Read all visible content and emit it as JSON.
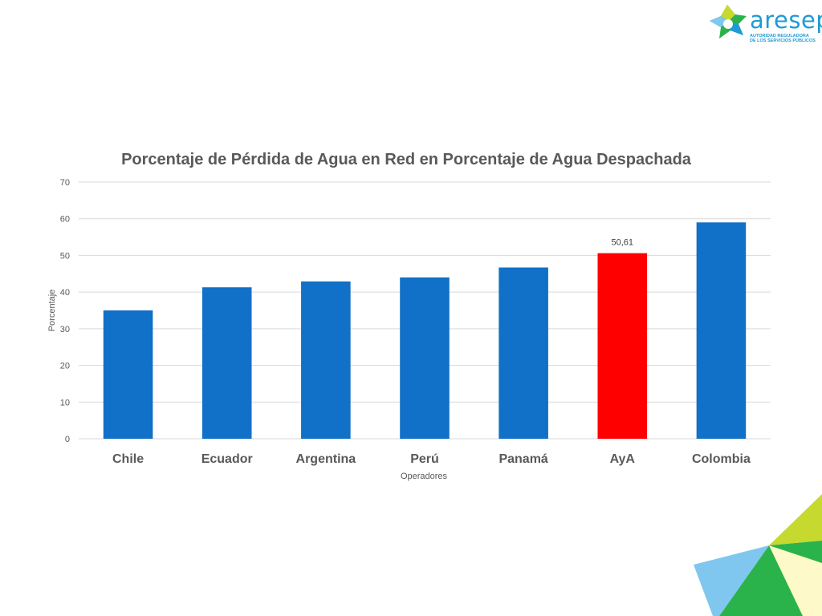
{
  "logo": {
    "name": "aresep",
    "subtitle_line1": "AUTORIDAD REGULADORA",
    "subtitle_line2": "DE LOS SERVICIOS PÚBLICOS"
  },
  "chart_data": {
    "type": "bar",
    "title": "Porcentaje de Pérdida de Agua en Red en Porcentaje de Agua Despachada",
    "xlabel": "Operadores",
    "ylabel": "Porcentaje",
    "categories": [
      "Chile",
      "Ecuador",
      "Argentina",
      "Perú",
      "Panamá",
      "AyA",
      "Colombia"
    ],
    "values": [
      35,
      41.3,
      42.9,
      44,
      46.7,
      50.61,
      59
    ],
    "colors": [
      "#1170c7",
      "#1170c7",
      "#1170c7",
      "#1170c7",
      "#1170c7",
      "#ff0000",
      "#1170c7"
    ],
    "data_labels": [
      "",
      "",
      "",
      "",
      "",
      "50,61",
      ""
    ],
    "ylim": [
      0,
      70
    ],
    "yticks": [
      0,
      10,
      20,
      30,
      40,
      50,
      60,
      70
    ],
    "grid": true,
    "legend": "none"
  }
}
